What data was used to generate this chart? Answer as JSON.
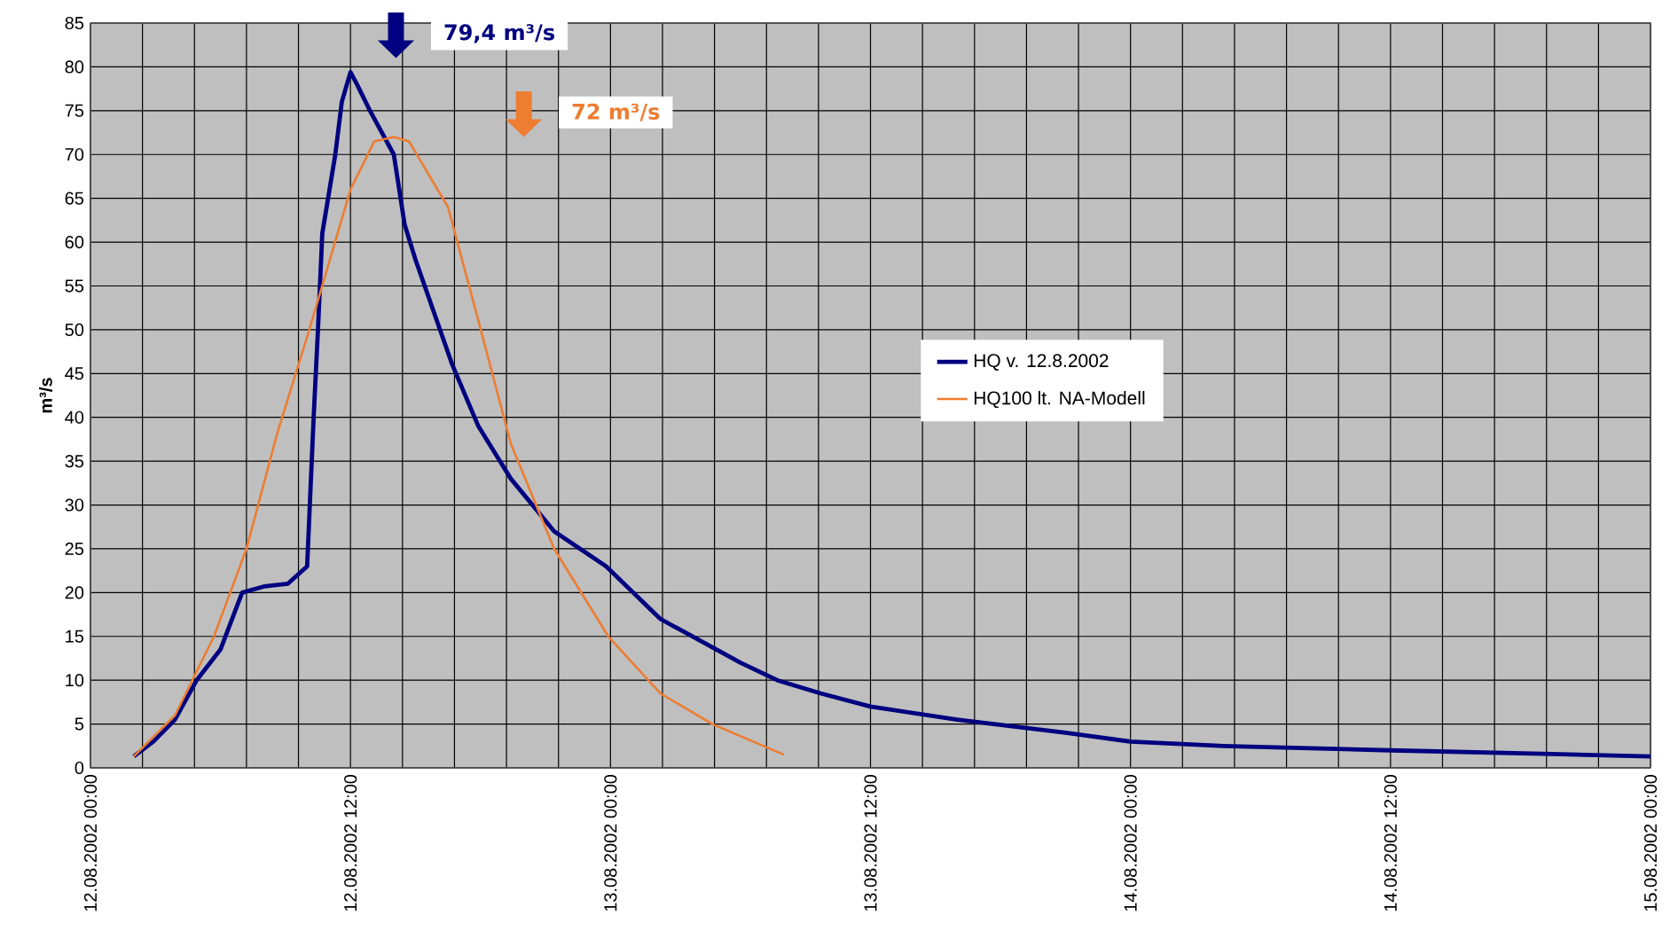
{
  "chart_data": {
    "type": "line",
    "ylabel": "m³/s",
    "x": [
      "2002-08-12T02:00",
      "2002-08-12T02:54",
      "2002-08-12T03:54",
      "2002-08-12T04:54",
      "2002-08-12T06:00",
      "2002-08-12T07:00",
      "2002-08-12T08:00",
      "2002-08-12T09:06",
      "2002-08-12T10:00",
      "2002-08-12T10:18",
      "2002-08-12T10:30",
      "2002-08-12T10:42",
      "2002-08-12T11:18",
      "2002-08-12T11:36",
      "2002-08-12T12:00",
      "2002-08-12T12:18",
      "2002-08-12T12:54",
      "2002-08-12T14:00",
      "2002-08-12T14:30",
      "2002-08-12T15:00",
      "2002-08-12T16:42",
      "2002-08-12T17:54",
      "2002-08-12T19:24",
      "2002-08-12T21:24",
      "2002-08-12T23:48",
      "2002-08-13T02:18",
      "2002-08-13T06:00",
      "2002-08-13T07:42",
      "2002-08-13T09:42",
      "2002-08-13T12:00",
      "2002-08-13T16:00",
      "2002-08-13T21:00",
      "2002-08-14T00:00",
      "2002-08-14T04:18",
      "2002-08-14T12:00",
      "2002-08-14T19:00",
      "2002-08-15T00:00"
    ],
    "series": [
      {
        "name": "HQ v. 12.8.2002",
        "color": "#000080",
        "values": [
          1.3,
          3,
          5.5,
          10,
          13.5,
          20,
          20.7,
          21,
          23,
          40,
          50,
          61,
          70,
          76,
          79.4,
          78,
          75,
          70,
          62,
          58,
          46,
          39,
          33,
          27,
          23,
          17,
          12,
          10,
          8.5,
          7,
          5.5,
          4,
          3,
          2.5,
          2,
          1.6,
          1.3
        ]
      },
      {
        "name": "HQ100 lt. NA-Modell",
        "color": "#ed7d31",
        "x": [
          "2002-08-12T02:00",
          "2002-08-12T03:54",
          "2002-08-12T05:42",
          "2002-08-12T07:12",
          "2002-08-12T08:36",
          "2002-08-12T10:06",
          "2002-08-12T12:00",
          "2002-08-12T13:06",
          "2002-08-12T14:00",
          "2002-08-12T14:42",
          "2002-08-12T16:30",
          "2002-08-12T17:48",
          "2002-08-12T19:24",
          "2002-08-12T21:24",
          "2002-08-12T23:54",
          "2002-08-13T02:18",
          "2002-08-13T04:42",
          "2002-08-13T08:00"
        ],
        "values": [
          1.3,
          6,
          15,
          25,
          38,
          50,
          66,
          71.5,
          72,
          71.5,
          64,
          52,
          37,
          25,
          15,
          8.5,
          5,
          1.5
        ]
      }
    ],
    "xlim": [
      "2002-08-12T00:00",
      "2002-08-15T00:00"
    ],
    "ylim": [
      0,
      85
    ],
    "xticks": [
      {
        "value": "2002-08-12T00:00",
        "label": "12.08.2002 00:00"
      },
      {
        "value": "2002-08-12T02:24",
        "label": null
      },
      {
        "value": "2002-08-12T04:48",
        "label": null
      },
      {
        "value": "2002-08-12T07:12",
        "label": null
      },
      {
        "value": "2002-08-12T09:36",
        "label": null
      },
      {
        "value": "2002-08-12T12:00",
        "label": "12.08.2002 12:00"
      },
      {
        "value": "2002-08-12T14:24",
        "label": null
      },
      {
        "value": "2002-08-12T16:48",
        "label": null
      },
      {
        "value": "2002-08-12T19:12",
        "label": null
      },
      {
        "value": "2002-08-12T21:36",
        "label": null
      },
      {
        "value": "2002-08-13T00:00",
        "label": "13.08.2002 00:00"
      },
      {
        "value": "2002-08-13T02:24",
        "label": null
      },
      {
        "value": "2002-08-13T04:48",
        "label": null
      },
      {
        "value": "2002-08-13T07:12",
        "label": null
      },
      {
        "value": "2002-08-13T09:36",
        "label": null
      },
      {
        "value": "2002-08-13T12:00",
        "label": "13.08.2002 12:00"
      },
      {
        "value": "2002-08-13T14:24",
        "label": null
      },
      {
        "value": "2002-08-13T16:48",
        "label": null
      },
      {
        "value": "2002-08-13T19:12",
        "label": null
      },
      {
        "value": "2002-08-13T21:36",
        "label": null
      },
      {
        "value": "2002-08-14T00:00",
        "label": "14.08.2002 00:00"
      },
      {
        "value": "2002-08-14T02:24",
        "label": null
      },
      {
        "value": "2002-08-14T04:48",
        "label": null
      },
      {
        "value": "2002-08-14T07:12",
        "label": null
      },
      {
        "value": "2002-08-14T09:36",
        "label": null
      },
      {
        "value": "2002-08-14T12:00",
        "label": "14.08.2002 12:00"
      },
      {
        "value": "2002-08-14T14:24",
        "label": null
      },
      {
        "value": "2002-08-14T16:48",
        "label": null
      },
      {
        "value": "2002-08-14T19:12",
        "label": null
      },
      {
        "value": "2002-08-14T21:36",
        "label": null
      },
      {
        "value": "2002-08-15T00:00",
        "label": "15.08.2002 00:00"
      }
    ],
    "yticks": [
      0,
      5,
      10,
      15,
      20,
      25,
      30,
      35,
      40,
      45,
      50,
      55,
      60,
      65,
      70,
      75,
      80,
      85
    ],
    "annotations": [
      "79,4 m³/s",
      "72 m³/s"
    ],
    "grid": true,
    "legend": "center",
    "line_style": "solid",
    "marker": "none"
  }
}
